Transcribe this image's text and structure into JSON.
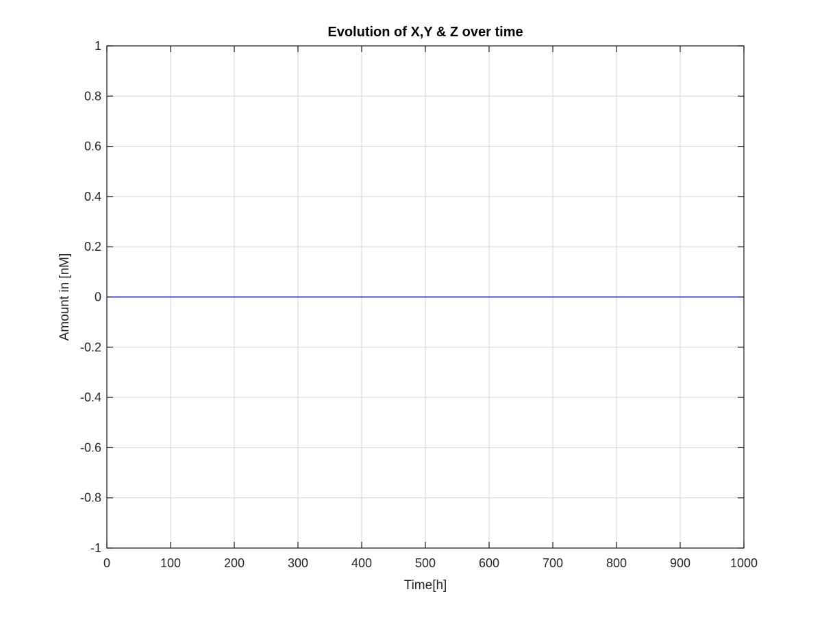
{
  "chart_data": {
    "type": "line",
    "title": "Evolution of X,Y & Z over time",
    "xlabel": "Time[h]",
    "ylabel": "Amount in [nM]",
    "xlim": [
      0,
      1000
    ],
    "ylim": [
      -1,
      1
    ],
    "x_ticks": [
      0,
      100,
      200,
      300,
      400,
      500,
      600,
      700,
      800,
      900,
      1000
    ],
    "x_tick_labels": [
      "0",
      "100",
      "200",
      "300",
      "400",
      "500",
      "600",
      "700",
      "800",
      "900",
      "1000"
    ],
    "y_ticks": [
      -1,
      -0.8,
      -0.6,
      -0.4,
      -0.2,
      0,
      0.2,
      0.4,
      0.6,
      0.8,
      1
    ],
    "y_tick_labels": [
      "-1",
      "-0.8",
      "-0.6",
      "-0.4",
      "-0.2",
      "0",
      "0.2",
      "0.4",
      "0.6",
      "0.8",
      "1"
    ],
    "grid": true,
    "box": true,
    "series": [
      {
        "color": "#0000ff",
        "x": [
          0,
          1000
        ],
        "y": [
          0,
          0
        ]
      }
    ],
    "colors": {
      "axis": "#262626",
      "grid": "#d4d4d4",
      "background": "#ffffff"
    }
  }
}
